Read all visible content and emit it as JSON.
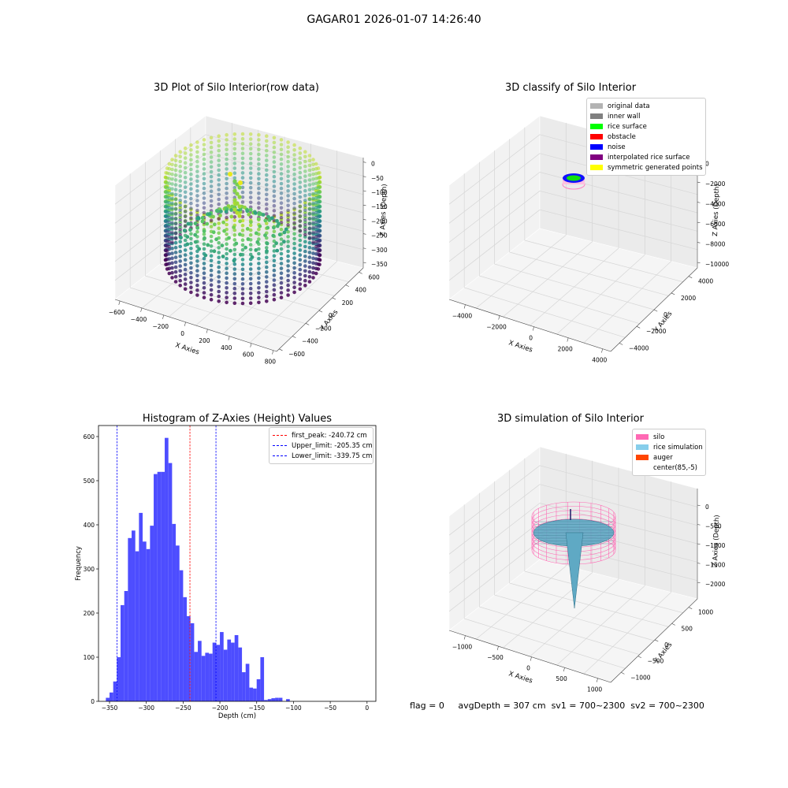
{
  "figure_title": "GAGAR01 2026-01-07 14:26:40",
  "panels": {
    "raw": {
      "title": "3D Plot of Silo Interior(row data)",
      "x_label": "X Axies",
      "y_label": "Y Axies",
      "z_label": "Z Axies (Depth)",
      "x_ticks": [
        "−600",
        "−400",
        "−200",
        "0",
        "200",
        "400",
        "600",
        "800"
      ],
      "y_ticks": [
        "−600",
        "−400",
        "−200",
        "0",
        "200",
        "400",
        "600"
      ],
      "z_ticks": [
        "0",
        "−50",
        "−100",
        "−150",
        "−200",
        "−250",
        "−300",
        "−350"
      ]
    },
    "classify": {
      "title": "3D classify of Silo Interior",
      "x_label": "X Axies",
      "y_label": "Y Axies",
      "z_label": "Z Axies (Depth)",
      "x_ticks": [
        "−4000",
        "−2000",
        "0",
        "2000",
        "4000"
      ],
      "y_ticks": [
        "−4000",
        "−2000",
        "0",
        "2000",
        "4000"
      ],
      "z_ticks": [
        "0",
        "−2000",
        "−4000",
        "−6000",
        "−8000",
        "−10000"
      ],
      "legend": [
        {
          "label": "original data",
          "color": "#b3b3b3"
        },
        {
          "label": "inner wall",
          "color": "#808080"
        },
        {
          "label": "rice surface",
          "color": "#00ff00"
        },
        {
          "label": "obstacle",
          "color": "#ff0000"
        },
        {
          "label": "noise",
          "color": "#0000ff"
        },
        {
          "label": "interpolated rice surface",
          "color": "#800080"
        },
        {
          "label": "symmetric generated points",
          "color": "#ffff00"
        }
      ]
    },
    "simulation": {
      "title": "3D simulation of Silo Interior",
      "x_label": "X Axies",
      "y_label": "Y Axies",
      "z_label": "Z Axies (Depth)",
      "x_ticks": [
        "−1000",
        "−500",
        "0",
        "500",
        "1000"
      ],
      "y_ticks": [
        "−1000",
        "−500",
        "0",
        "500",
        "1000"
      ],
      "z_ticks": [
        "0",
        "−500",
        "−1000",
        "−1500",
        "−2000"
      ],
      "legend": [
        {
          "label": "silo",
          "color": "#ff69b4"
        },
        {
          "label": "rice simulation",
          "color": "#87ceeb"
        },
        {
          "label": "auger",
          "color": "#ff4500"
        },
        {
          "label": "center(85,-5)",
          "color": "#ffffff"
        }
      ]
    }
  },
  "chart_data": {
    "type": "bar",
    "title": "Histogram of Z-Axies (Height) Values",
    "xlabel": "Depth (cm)",
    "ylabel": "Frequency",
    "xlim": [
      -365,
      12
    ],
    "ylim": [
      0,
      625
    ],
    "xticks": [
      -350,
      -300,
      -250,
      -200,
      -150,
      -100,
      -50,
      0
    ],
    "xtick_labels": [
      "−350",
      "−300",
      "−250",
      "−200",
      "−150",
      "−100",
      "−50",
      "0"
    ],
    "yticks": [
      0,
      100,
      200,
      300,
      400,
      500,
      600
    ],
    "bar_color": "#4d4dff",
    "bin_start": -355,
    "bin_width": 5,
    "values": [
      8,
      20,
      45,
      100,
      218,
      250,
      370,
      387,
      340,
      427,
      362,
      345,
      398,
      515,
      520,
      520,
      597,
      540,
      402,
      353,
      297,
      236,
      193,
      177,
      112,
      137,
      103,
      110,
      108,
      133,
      128,
      157,
      117,
      140,
      133,
      150,
      122,
      66,
      85,
      31,
      29,
      50,
      100,
      3,
      5,
      7,
      8,
      8,
      0,
      5
    ],
    "legend": [
      {
        "label": "first_peak: -240.72 cm",
        "x": -240.72,
        "color": "#ff0000"
      },
      {
        "label": "Upper_limit: -205.35 cm",
        "x": -205.35,
        "color": "#0000ff"
      },
      {
        "label": "Lower_limit: -339.75 cm",
        "x": -339.75,
        "color": "#0000ff"
      }
    ]
  },
  "status": {
    "flag": "flag = 0",
    "avg_depth": "avgDepth = 307 cm",
    "sv1": "sv1 = 700~2300",
    "sv2": "sv2 = 700~2300"
  }
}
